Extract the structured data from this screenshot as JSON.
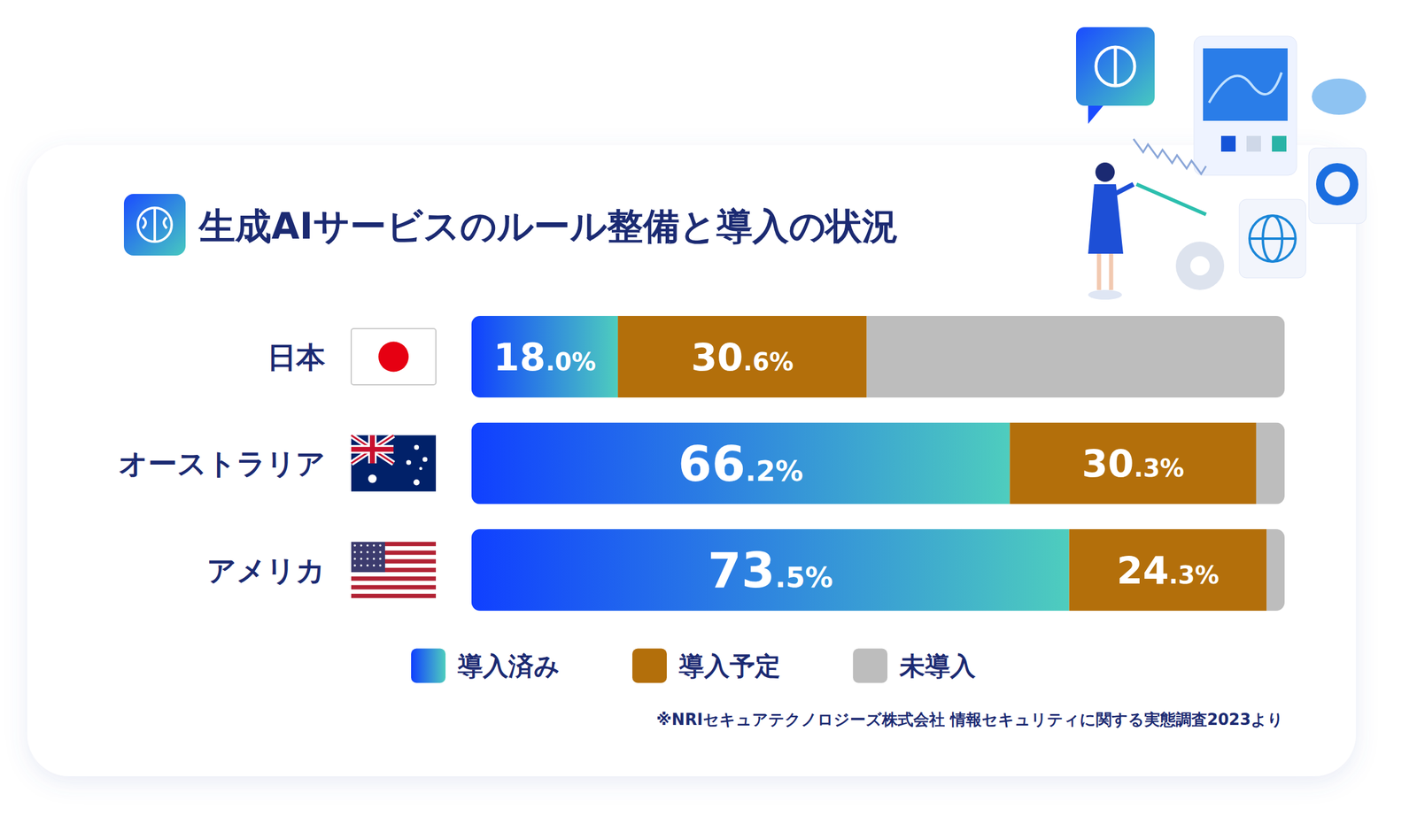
{
  "chart_data": {
    "type": "bar",
    "orientation": "horizontal",
    "stacked": true,
    "data_labels": true,
    "tick_labels": false,
    "legend": "bottom",
    "title": "生成AIサービスのルール整備と導入の状況",
    "source": "※NRIセキュアテクノロジーズ株式会社 情報セキュリティに関する実態調査2023より",
    "categories": [
      "日本",
      "オーストラリア",
      "アメリカ"
    ],
    "xlim": [
      0,
      100
    ],
    "series": [
      {
        "name": "導入済み",
        "color": "#1040ff",
        "values": [
          18.0,
          66.2,
          73.5
        ],
        "value_labels": [
          "18.0%",
          "66.2%",
          "73.5%"
        ]
      },
      {
        "name": "導入予定",
        "color": "#b36f0b",
        "values": [
          30.6,
          30.3,
          24.3
        ],
        "value_labels": [
          "30.6%",
          "30.3%",
          "24.3%"
        ]
      },
      {
        "name": "未導入",
        "color": "#bdbdbd",
        "values": [
          51.4,
          3.5,
          2.2
        ]
      }
    ]
  }
}
